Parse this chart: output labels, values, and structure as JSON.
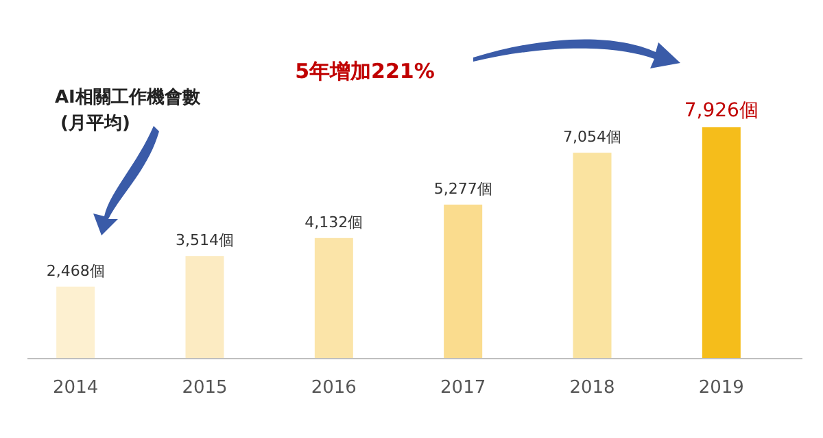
{
  "chart_data": {
    "type": "bar",
    "title": "AI相關工作機會數",
    "subtitle": "(月平均)",
    "categories": [
      "2014",
      "2015",
      "2016",
      "2017",
      "2018",
      "2019"
    ],
    "values": [
      2468,
      3514,
      4132,
      5277,
      7054,
      7926
    ],
    "colors": [
      "#fdf0d0",
      "#fcebc2",
      "#fbe4a8",
      "#fadc8e",
      "#fae3a0",
      "#f5bd1b"
    ],
    "value_labels": [
      "2,468個",
      "3,514個",
      "4,132個",
      "5,277個",
      "7,054個",
      "7,926個"
    ],
    "annotations": [
      "5年增加221%"
    ]
  }
}
